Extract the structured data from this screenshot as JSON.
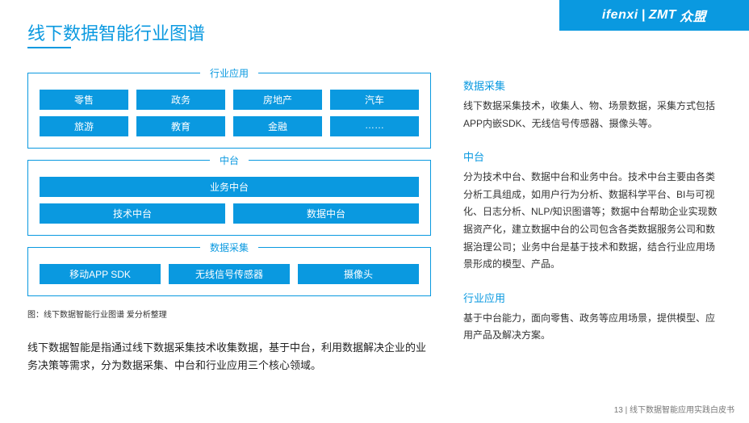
{
  "colors": {
    "accent": "#0a99e0",
    "bg": "#ffffff",
    "text": "#333333"
  },
  "brand": {
    "a": "ifenxi",
    "b": "ZMT",
    "c": "众盟"
  },
  "title": "线下数据智能行业图谱",
  "groups": {
    "industry": {
      "label": "行业应用",
      "row1": [
        "零售",
        "政务",
        "房地产",
        "汽车"
      ],
      "row2": [
        "旅游",
        "教育",
        "金融",
        "……"
      ]
    },
    "middle": {
      "label": "中台",
      "full": "业务中台",
      "half": [
        "技术中台",
        "数据中台"
      ]
    },
    "collect": {
      "label": "数据采集",
      "items": [
        "移动APP SDK",
        "无线信号传感器",
        "摄像头"
      ]
    }
  },
  "caption": "图：线下数据智能行业图谱  爱分析整理",
  "para": "线下数据智能是指通过线下数据采集技术收集数据，基于中台，利用数据解决企业的业务决策等需求，分为数据采集、中台和行业应用三个核心领域。",
  "sections": {
    "s1": {
      "h": "数据采集",
      "p": "线下数据采集技术，收集人、物、场景数据，采集方式包括APP内嵌SDK、无线信号传感器、摄像头等。"
    },
    "s2": {
      "h": "中台",
      "p": "分为技术中台、数据中台和业务中台。技术中台主要由各类分析工具组成，如用户行为分析、数据科学平台、BI与可视化、日志分析、NLP/知识图谱等；数据中台帮助企业实现数据资产化，建立数据中台的公司包含各类数据服务公司和数据治理公司；业务中台是基于技术和数据，结合行业应用场景形成的模型、产品。"
    },
    "s3": {
      "h": "行业应用",
      "p": "基于中台能力，面向零售、政务等应用场景，提供模型、应用产品及解决方案。"
    }
  },
  "footer": {
    "page": "13",
    "divider": " | ",
    "doc": "线下数据智能应用实践白皮书"
  }
}
